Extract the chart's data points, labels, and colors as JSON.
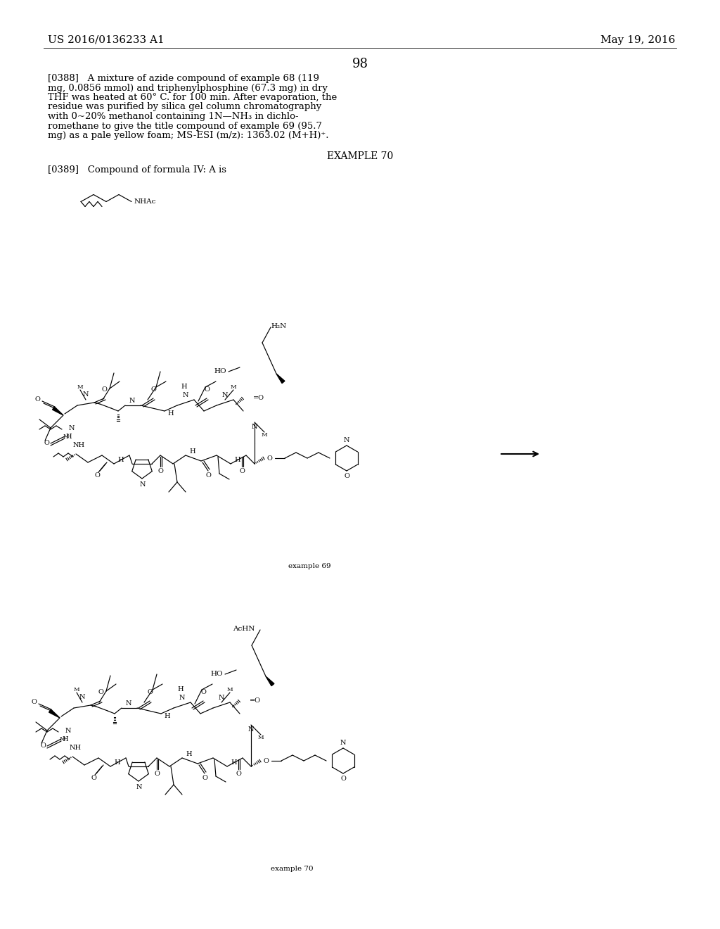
{
  "background_color": "#ffffff",
  "header_left": "US 2016/0136233 A1",
  "header_right": "May 19, 2016",
  "page_number": "98",
  "para388_lines": [
    "[0388]   A mixture of azide compound of example 68 (119",
    "mg, 0.0856 mmol) and triphenylphosphine (67.3 mg) in dry",
    "THF was heated at 60° C. for 100 min. After evaporation, the",
    "residue was purified by silica gel column chromatography",
    "with 0~20% methanol containing 1N—NH₃ in dichlo-",
    "romethane to give the title compound of example 69 (95.7",
    "mg) as a pale yellow foam; MS-ESI (m/z): 1363.02 (M+H)⁺."
  ],
  "example_title": "EXAMPLE 70",
  "para389": "[0389]   Compound of formula IV: A is",
  "label_69": "example 69",
  "label_achn": "AcHN",
  "label_70": "example 70",
  "font_body": 9.5,
  "font_header": 11,
  "font_page_num": 13,
  "font_example": 10,
  "font_chem": 7.0,
  "font_chem_small": 6.0
}
